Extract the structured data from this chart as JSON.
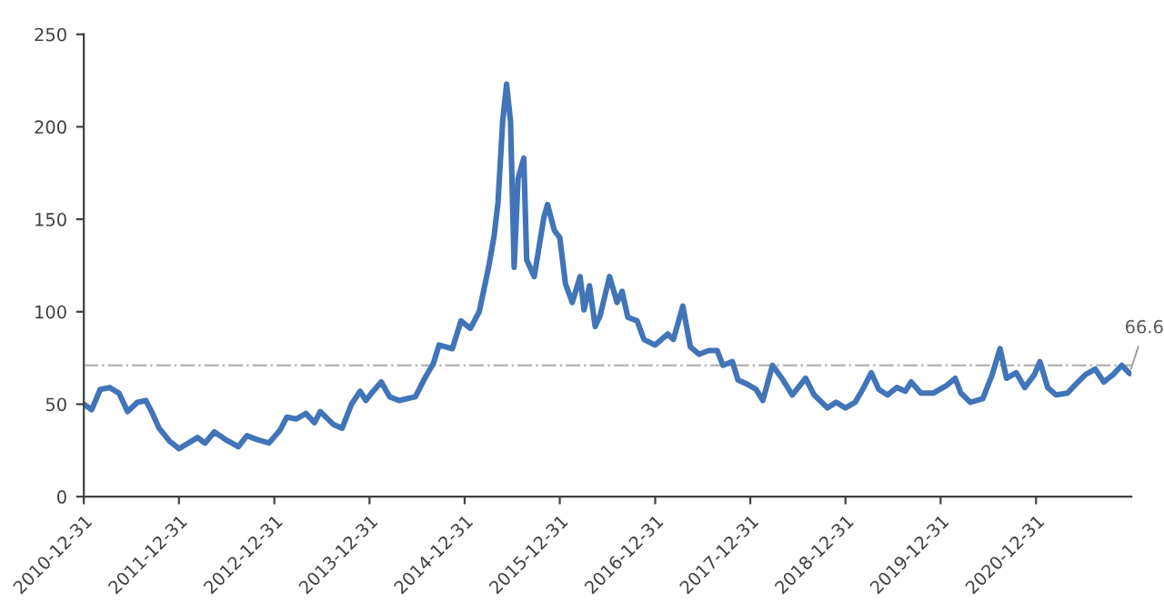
{
  "chart_data": {
    "type": "line",
    "color": "#4174b8",
    "x": [
      "2010-12-31",
      "2011-01-30",
      "2011-03-04",
      "2011-04-09",
      "2011-05-15",
      "2011-06-17",
      "2011-07-24",
      "2011-08-26",
      "2011-09-17",
      "2011-10-16",
      "2011-11-25",
      "2011-12-31",
      "2012-02-06",
      "2012-03-11",
      "2012-04-09",
      "2012-05-15",
      "2012-06-25",
      "2012-08-15",
      "2012-09-17",
      "2012-10-23",
      "2012-12-10",
      "2013-01-22",
      "2013-02-17",
      "2013-03-26",
      "2013-05-01",
      "2013-06-03",
      "2013-06-25",
      "2013-08-15",
      "2013-09-17",
      "2013-10-23",
      "2013-11-25",
      "2013-12-17",
      "2014-01-08",
      "2014-02-14",
      "2014-03-18",
      "2014-04-23",
      "2014-06-25",
      "2014-07-31",
      "2014-09-02",
      "2014-09-24",
      "2014-11-14",
      "2014-12-17",
      "2015-01-22",
      "2015-02-25",
      "2015-04-02",
      "2015-04-23",
      "2015-05-08",
      "2015-05-26",
      "2015-06-10",
      "2015-06-25",
      "2015-07-09",
      "2015-07-24",
      "2015-08-15",
      "2015-08-26",
      "2015-09-24",
      "2015-10-31",
      "2015-11-14",
      "2015-12-10",
      "2015-12-31",
      "2016-01-22",
      "2016-02-17",
      "2016-03-18",
      "2016-04-02",
      "2016-04-23",
      "2016-05-15",
      "2016-06-03",
      "2016-07-09",
      "2016-08-07",
      "2016-08-26",
      "2016-09-17",
      "2016-10-23",
      "2016-11-18",
      "2016-12-31",
      "2017-02-17",
      "2017-03-11",
      "2017-04-16",
      "2017-05-15",
      "2017-06-17",
      "2017-07-24",
      "2017-08-26",
      "2017-09-17",
      "2017-10-23",
      "2017-11-14",
      "2017-12-17",
      "2018-01-22",
      "2018-02-17",
      "2018-03-26",
      "2018-05-01",
      "2018-06-10",
      "2018-07-31",
      "2018-09-02",
      "2018-10-23",
      "2018-11-25",
      "2018-12-31",
      "2019-02-06",
      "2019-03-11",
      "2019-04-09",
      "2019-05-08",
      "2019-06-10",
      "2019-07-16",
      "2019-08-18",
      "2019-09-09",
      "2019-10-16",
      "2019-12-03",
      "2020-01-22",
      "2020-02-25",
      "2020-03-18",
      "2020-04-23",
      "2020-06-10",
      "2020-07-16",
      "2020-08-15",
      "2020-09-09",
      "2020-10-16",
      "2020-11-18",
      "2020-12-25",
      "2021-01-15",
      "2021-02-14",
      "2021-03-18",
      "2021-05-01",
      "2021-06-03",
      "2021-07-09",
      "2021-08-15",
      "2021-09-17",
      "2021-10-23",
      "2021-11-25",
      "2021-12-25"
    ],
    "values": [
      50,
      47,
      58,
      59,
      56,
      46,
      51,
      52,
      46,
      37,
      30,
      26,
      29,
      32,
      29,
      35,
      31,
      27,
      33,
      31,
      29,
      36,
      43,
      42,
      45,
      40,
      46,
      39,
      37,
      50,
      57,
      52,
      56,
      62,
      54,
      52,
      54,
      64,
      72,
      82,
      80,
      95,
      91,
      100,
      124,
      141,
      159,
      203,
      223,
      203,
      124,
      172,
      183,
      128,
      119,
      151,
      158,
      144,
      140,
      115,
      105,
      119,
      101,
      114,
      92,
      98,
      119,
      105,
      111,
      97,
      95,
      85,
      82,
      88,
      85,
      103,
      81,
      77,
      79,
      79,
      71,
      73,
      63,
      61,
      58,
      52,
      71,
      64,
      55,
      64,
      55,
      48,
      51,
      48,
      51,
      59,
      67,
      58,
      55,
      59,
      57,
      62,
      56,
      56,
      60,
      64,
      56,
      51,
      53,
      66,
      80,
      64,
      67,
      59,
      66,
      73,
      59,
      55,
      56,
      61,
      66,
      69,
      62,
      66,
      71,
      66.6
    ],
    "xlim": [
      "2010-12-31",
      "2022-01-01"
    ],
    "xticks": [
      "2010-12-31",
      "2011-12-31",
      "2012-12-31",
      "2013-12-31",
      "2014-12-31",
      "2015-12-31",
      "2016-12-31",
      "2017-12-31",
      "2018-12-31",
      "2019-12-31",
      "2020-12-31"
    ],
    "ylim": [
      0,
      250
    ],
    "yticks": [
      0,
      50,
      100,
      150,
      200,
      250
    ],
    "ref_lines": [
      {
        "axis": "y",
        "value": 71,
        "color": "#b8b8b8",
        "line_style": "dashdot"
      }
    ],
    "annotations": [
      {
        "text": "66.6",
        "x": "2021-12-25",
        "y": 66.6
      }
    ],
    "grid": false,
    "legend": false
  }
}
